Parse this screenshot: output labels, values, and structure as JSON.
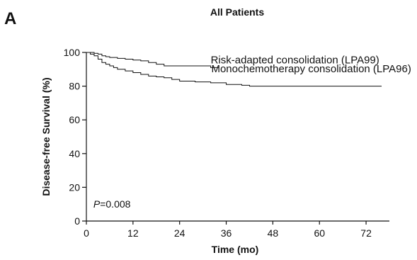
{
  "chart_data": {
    "type": "line",
    "panel_label": "A",
    "title": "All Patients",
    "xlabel": "Time (mo)",
    "ylabel": "Disease-free Survival (%)",
    "xlim": [
      0,
      78
    ],
    "ylim": [
      0,
      100
    ],
    "xticks": [
      0,
      12,
      24,
      36,
      48,
      60,
      72
    ],
    "yticks": [
      0,
      20,
      40,
      60,
      80,
      100
    ],
    "grid": false,
    "annotation": {
      "prefix": "P",
      "text": "=0.008"
    },
    "series": [
      {
        "name": "Risk-adapted consolidation (LPA99)",
        "step": true,
        "x": [
          0,
          2,
          3,
          4,
          5,
          6,
          8,
          10,
          12,
          14,
          16,
          18,
          20,
          32,
          34
        ],
        "y": [
          100,
          99.5,
          99,
          98,
          97.5,
          97,
          96.5,
          96,
          95.5,
          95,
          94,
          93,
          92,
          91,
          91
        ]
      },
      {
        "name": "Monochemotherapy consolidation (LPA96)",
        "step": true,
        "x": [
          0,
          1,
          2,
          3,
          4,
          5,
          6,
          7,
          8,
          10,
          12,
          14,
          16,
          18,
          20,
          22,
          24,
          28,
          32,
          36,
          40,
          42,
          76
        ],
        "y": [
          100,
          99,
          98,
          96,
          94,
          93,
          92,
          91,
          90,
          89,
          88,
          87,
          86,
          85.5,
          85,
          84,
          83,
          82.5,
          82,
          81,
          80.5,
          80,
          80
        ]
      }
    ],
    "legend_anchor": {
      "x": [
        32,
        42
      ],
      "y": [
        91,
        87
      ]
    }
  }
}
